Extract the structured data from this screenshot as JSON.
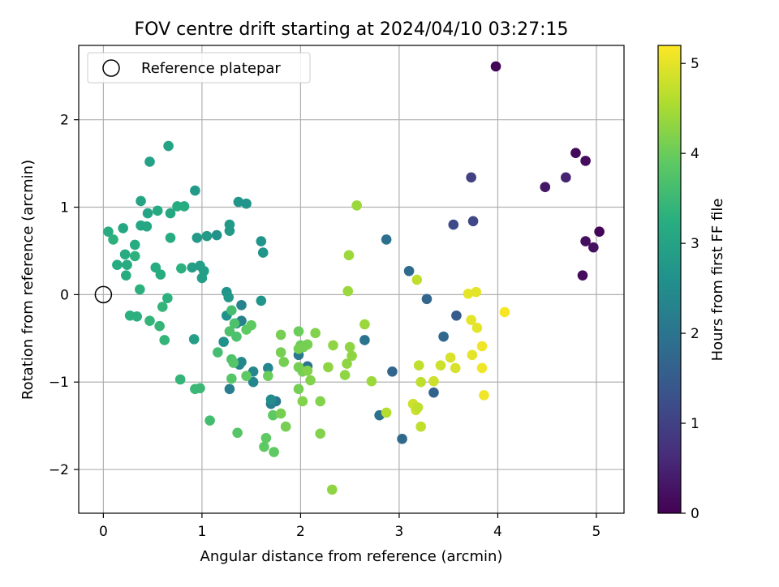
{
  "chart_data": {
    "type": "scatter",
    "title": "FOV centre drift starting at 2024/04/10 03:27:15",
    "xlabel": "Angular distance from reference (arcmin)",
    "ylabel": "Rotation from reference (arcmin)",
    "xlim": [
      -0.25,
      5.28
    ],
    "ylim": [
      -2.5,
      2.85
    ],
    "x_ticks": [
      0,
      1,
      2,
      3,
      4,
      5
    ],
    "y_ticks": [
      -2,
      -1,
      0,
      1,
      2
    ],
    "grid": true,
    "colormap": "viridis",
    "colorbar": {
      "label": "Hours from first FF file",
      "range": [
        0,
        5.2
      ],
      "ticks": [
        0,
        1,
        2,
        3,
        4,
        5
      ]
    },
    "legend": {
      "placement": "upper-left",
      "entries": [
        "Reference platepar"
      ]
    },
    "reference_point": {
      "x": 0,
      "y": 0
    },
    "points": [
      {
        "x": 3.98,
        "y": 2.61,
        "h": 0.05
      },
      {
        "x": 4.79,
        "y": 1.62,
        "h": 0.1
      },
      {
        "x": 4.89,
        "y": 1.53,
        "h": 0.15
      },
      {
        "x": 4.48,
        "y": 1.23,
        "h": 0.3
      },
      {
        "x": 4.69,
        "y": 1.34,
        "h": 0.5
      },
      {
        "x": 5.03,
        "y": 0.72,
        "h": 0.05
      },
      {
        "x": 4.89,
        "y": 0.61,
        "h": 0.2
      },
      {
        "x": 4.97,
        "y": 0.54,
        "h": 0.25
      },
      {
        "x": 4.86,
        "y": 0.22,
        "h": 0.15
      },
      {
        "x": 3.73,
        "y": 1.34,
        "h": 1.0
      },
      {
        "x": 3.55,
        "y": 0.8,
        "h": 1.2
      },
      {
        "x": 3.75,
        "y": 0.84,
        "h": 1.1
      },
      {
        "x": 3.58,
        "y": -0.24,
        "h": 1.5
      },
      {
        "x": 3.45,
        "y": -0.48,
        "h": 1.75
      },
      {
        "x": 3.35,
        "y": -1.12,
        "h": 1.65
      },
      {
        "x": 3.28,
        "y": -0.05,
        "h": 1.7
      },
      {
        "x": 3.1,
        "y": 0.27,
        "h": 1.8
      },
      {
        "x": 2.87,
        "y": 0.63,
        "h": 1.9
      },
      {
        "x": 2.93,
        "y": -0.88,
        "h": 1.7
      },
      {
        "x": 3.03,
        "y": -1.65,
        "h": 1.75
      },
      {
        "x": 2.8,
        "y": -1.38,
        "h": 1.9
      },
      {
        "x": 2.65,
        "y": -0.52,
        "h": 2.0
      },
      {
        "x": 2.07,
        "y": -0.82,
        "h": 2.0
      },
      {
        "x": 1.98,
        "y": -0.69,
        "h": 2.05
      },
      {
        "x": 1.75,
        "y": -1.22,
        "h": 2.1
      },
      {
        "x": 1.7,
        "y": -1.25,
        "h": 2.2
      },
      {
        "x": 1.28,
        "y": -1.08,
        "h": 2.2
      },
      {
        "x": 1.38,
        "y": -0.8,
        "h": 2.25
      },
      {
        "x": 1.35,
        "y": -0.33,
        "h": 2.3
      },
      {
        "x": 1.4,
        "y": -0.3,
        "h": 2.3
      },
      {
        "x": 1.4,
        "y": -0.12,
        "h": 2.3
      },
      {
        "x": 1.4,
        "y": -0.77,
        "h": 2.4
      },
      {
        "x": 1.52,
        "y": -0.88,
        "h": 2.4
      },
      {
        "x": 1.52,
        "y": -1.0,
        "h": 2.4
      },
      {
        "x": 1.67,
        "y": -0.84,
        "h": 2.4
      },
      {
        "x": 1.7,
        "y": -1.2,
        "h": 2.5
      },
      {
        "x": 1.22,
        "y": -0.54,
        "h": 2.6
      },
      {
        "x": 1.25,
        "y": -0.24,
        "h": 2.6
      },
      {
        "x": 1.15,
        "y": 0.68,
        "h": 2.6
      },
      {
        "x": 1.37,
        "y": 1.06,
        "h": 2.7
      },
      {
        "x": 1.45,
        "y": 1.04,
        "h": 2.7
      },
      {
        "x": 1.6,
        "y": 0.61,
        "h": 2.7
      },
      {
        "x": 1.62,
        "y": 0.48,
        "h": 2.7
      },
      {
        "x": 1.6,
        "y": -0.07,
        "h": 2.7
      },
      {
        "x": 1.25,
        "y": 0.03,
        "h": 2.7
      },
      {
        "x": 1.27,
        "y": -0.03,
        "h": 2.75
      },
      {
        "x": 0.93,
        "y": 1.19,
        "h": 2.8
      },
      {
        "x": 0.95,
        "y": 0.65,
        "h": 2.8
      },
      {
        "x": 1.05,
        "y": 0.67,
        "h": 2.8
      },
      {
        "x": 1.28,
        "y": 0.8,
        "h": 2.8
      },
      {
        "x": 1.28,
        "y": 0.73,
        "h": 2.8
      },
      {
        "x": 0.9,
        "y": 0.31,
        "h": 2.9
      },
      {
        "x": 0.98,
        "y": 0.33,
        "h": 2.9
      },
      {
        "x": 1.02,
        "y": 0.27,
        "h": 2.9
      },
      {
        "x": 1.0,
        "y": 0.19,
        "h": 2.9
      },
      {
        "x": 0.92,
        "y": -0.51,
        "h": 2.9
      },
      {
        "x": 0.47,
        "y": 1.52,
        "h": 2.95
      },
      {
        "x": 0.66,
        "y": 1.7,
        "h": 3.0
      },
      {
        "x": 0.38,
        "y": 1.07,
        "h": 3.0
      },
      {
        "x": 0.45,
        "y": 0.93,
        "h": 3.0
      },
      {
        "x": 0.38,
        "y": 0.79,
        "h": 3.1
      },
      {
        "x": 0.44,
        "y": 0.78,
        "h": 3.1
      },
      {
        "x": 0.68,
        "y": 0.93,
        "h": 3.1
      },
      {
        "x": 0.55,
        "y": 0.96,
        "h": 3.15
      },
      {
        "x": 0.75,
        "y": 1.01,
        "h": 3.2
      },
      {
        "x": 0.82,
        "y": 1.01,
        "h": 3.2
      },
      {
        "x": 0.2,
        "y": 0.76,
        "h": 3.1
      },
      {
        "x": 0.05,
        "y": 0.72,
        "h": 3.2
      },
      {
        "x": 0.1,
        "y": 0.63,
        "h": 3.3
      },
      {
        "x": 0.32,
        "y": 0.57,
        "h": 3.2
      },
      {
        "x": 0.22,
        "y": 0.46,
        "h": 3.2
      },
      {
        "x": 0.32,
        "y": 0.44,
        "h": 3.3
      },
      {
        "x": 0.14,
        "y": 0.34,
        "h": 3.2
      },
      {
        "x": 0.24,
        "y": 0.34,
        "h": 3.2
      },
      {
        "x": 0.23,
        "y": 0.22,
        "h": 3.2
      },
      {
        "x": 0.53,
        "y": 0.31,
        "h": 3.2
      },
      {
        "x": 0.58,
        "y": 0.23,
        "h": 3.2
      },
      {
        "x": 0.68,
        "y": 0.65,
        "h": 3.2
      },
      {
        "x": 0.79,
        "y": 0.3,
        "h": 3.3
      },
      {
        "x": 0.37,
        "y": 0.06,
        "h": 3.3
      },
      {
        "x": 0.65,
        "y": -0.04,
        "h": 3.3
      },
      {
        "x": 0.6,
        "y": -0.14,
        "h": 3.4
      },
      {
        "x": 0.27,
        "y": -0.24,
        "h": 3.3
      },
      {
        "x": 0.34,
        "y": -0.25,
        "h": 3.3
      },
      {
        "x": 0.47,
        "y": -0.3,
        "h": 3.4
      },
      {
        "x": 0.57,
        "y": -0.36,
        "h": 3.4
      },
      {
        "x": 0.62,
        "y": -0.52,
        "h": 3.4
      },
      {
        "x": 0.78,
        "y": -0.97,
        "h": 3.4
      },
      {
        "x": 0.93,
        "y": -1.08,
        "h": 3.5
      },
      {
        "x": 0.98,
        "y": -1.07,
        "h": 3.5
      },
      {
        "x": 1.08,
        "y": -1.44,
        "h": 3.6
      },
      {
        "x": 1.16,
        "y": -0.66,
        "h": 3.6
      },
      {
        "x": 1.3,
        "y": -0.18,
        "h": 3.6
      },
      {
        "x": 1.28,
        "y": -0.42,
        "h": 3.7
      },
      {
        "x": 1.33,
        "y": -0.33,
        "h": 3.7
      },
      {
        "x": 1.35,
        "y": -0.48,
        "h": 3.7
      },
      {
        "x": 1.3,
        "y": -0.74,
        "h": 3.7
      },
      {
        "x": 1.32,
        "y": -0.78,
        "h": 3.8
      },
      {
        "x": 1.3,
        "y": -0.96,
        "h": 3.8
      },
      {
        "x": 1.36,
        "y": -1.58,
        "h": 3.8
      },
      {
        "x": 1.45,
        "y": -0.93,
        "h": 3.9
      },
      {
        "x": 1.45,
        "y": -0.4,
        "h": 3.9
      },
      {
        "x": 1.5,
        "y": -0.35,
        "h": 3.9
      },
      {
        "x": 1.67,
        "y": -0.93,
        "h": 4.0
      },
      {
        "x": 1.72,
        "y": -1.38,
        "h": 3.9
      },
      {
        "x": 1.65,
        "y": -1.64,
        "h": 3.9
      },
      {
        "x": 1.63,
        "y": -1.74,
        "h": 3.9
      },
      {
        "x": 1.73,
        "y": -1.8,
        "h": 3.9
      },
      {
        "x": 1.8,
        "y": -0.46,
        "h": 4.1
      },
      {
        "x": 1.8,
        "y": -0.66,
        "h": 4.1
      },
      {
        "x": 1.83,
        "y": -0.77,
        "h": 4.1
      },
      {
        "x": 1.8,
        "y": -1.36,
        "h": 4.1
      },
      {
        "x": 1.85,
        "y": -1.51,
        "h": 4.1
      },
      {
        "x": 1.98,
        "y": -0.42,
        "h": 4.0
      },
      {
        "x": 2.0,
        "y": -0.58,
        "h": 4.0
      },
      {
        "x": 1.98,
        "y": -0.62,
        "h": 4.1
      },
      {
        "x": 2.03,
        "y": -0.6,
        "h": 4.1
      },
      {
        "x": 2.07,
        "y": -0.57,
        "h": 4.1
      },
      {
        "x": 1.98,
        "y": -0.83,
        "h": 4.1
      },
      {
        "x": 2.02,
        "y": -0.88,
        "h": 4.1
      },
      {
        "x": 2.07,
        "y": -0.87,
        "h": 4.2
      },
      {
        "x": 2.1,
        "y": -0.98,
        "h": 4.2
      },
      {
        "x": 1.98,
        "y": -1.08,
        "h": 4.1
      },
      {
        "x": 2.02,
        "y": -1.22,
        "h": 4.2
      },
      {
        "x": 2.15,
        "y": -0.44,
        "h": 4.2
      },
      {
        "x": 2.2,
        "y": -1.22,
        "h": 4.2
      },
      {
        "x": 2.2,
        "y": -1.59,
        "h": 4.2
      },
      {
        "x": 2.28,
        "y": -0.83,
        "h": 4.3
      },
      {
        "x": 2.33,
        "y": -0.58,
        "h": 4.3
      },
      {
        "x": 2.32,
        "y": -2.23,
        "h": 4.3
      },
      {
        "x": 2.45,
        "y": -0.92,
        "h": 4.3
      },
      {
        "x": 2.47,
        "y": -0.79,
        "h": 4.3
      },
      {
        "x": 2.5,
        "y": -0.6,
        "h": 4.3
      },
      {
        "x": 2.52,
        "y": -0.7,
        "h": 4.3
      },
      {
        "x": 2.48,
        "y": 0.04,
        "h": 4.4
      },
      {
        "x": 2.49,
        "y": 0.45,
        "h": 4.4
      },
      {
        "x": 2.57,
        "y": 1.02,
        "h": 4.4
      },
      {
        "x": 2.65,
        "y": -0.34,
        "h": 4.4
      },
      {
        "x": 2.72,
        "y": -0.99,
        "h": 4.4
      },
      {
        "x": 2.87,
        "y": -1.35,
        "h": 4.6
      },
      {
        "x": 3.14,
        "y": -1.25,
        "h": 4.8
      },
      {
        "x": 3.17,
        "y": -1.32,
        "h": 4.8
      },
      {
        "x": 3.19,
        "y": -1.29,
        "h": 4.7
      },
      {
        "x": 3.2,
        "y": -0.81,
        "h": 4.7
      },
      {
        "x": 3.22,
        "y": -1.0,
        "h": 4.7
      },
      {
        "x": 3.22,
        "y": -1.51,
        "h": 4.7
      },
      {
        "x": 3.18,
        "y": 0.17,
        "h": 4.7
      },
      {
        "x": 3.35,
        "y": -0.99,
        "h": 4.8
      },
      {
        "x": 3.42,
        "y": -0.81,
        "h": 4.8
      },
      {
        "x": 3.52,
        "y": -0.72,
        "h": 4.9
      },
      {
        "x": 3.57,
        "y": -0.84,
        "h": 4.9
      },
      {
        "x": 3.7,
        "y": 0.01,
        "h": 5.0
      },
      {
        "x": 3.78,
        "y": 0.03,
        "h": 5.0
      },
      {
        "x": 3.73,
        "y": -0.29,
        "h": 5.0
      },
      {
        "x": 3.79,
        "y": -0.38,
        "h": 5.0
      },
      {
        "x": 3.74,
        "y": -0.69,
        "h": 5.0
      },
      {
        "x": 3.84,
        "y": -0.59,
        "h": 5.1
      },
      {
        "x": 3.84,
        "y": -0.84,
        "h": 5.1
      },
      {
        "x": 3.86,
        "y": -1.15,
        "h": 5.1
      },
      {
        "x": 4.07,
        "y": -0.2,
        "h": 5.15
      }
    ]
  }
}
